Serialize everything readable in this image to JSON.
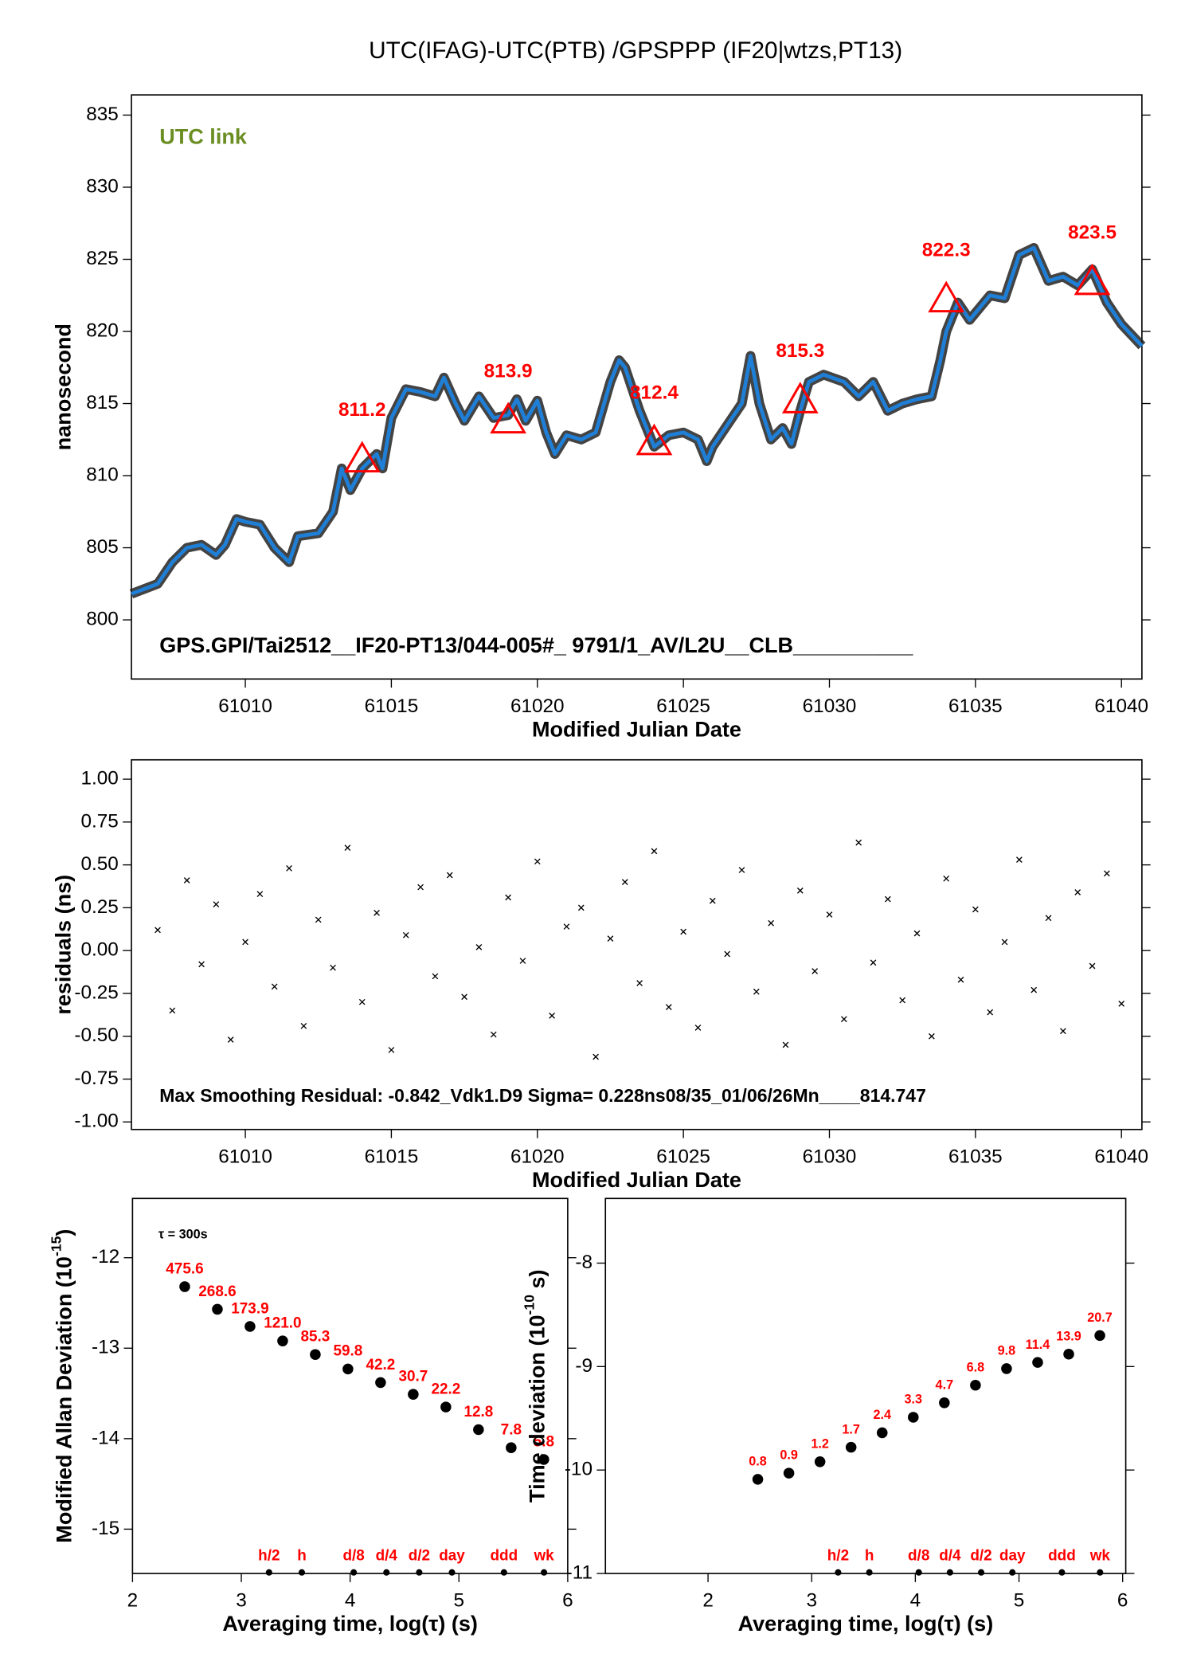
{
  "chart_data": [
    {
      "type": "line",
      "title": "UTC(IFAG)-UTC(PTB)  /GPSPPP  (IF20|wtzs,PT13)",
      "annotation": "UTC link",
      "footnote": "GPS.GPI/Tai2512__IF20-PT13/044-005#_  9791/1_AV/L2U__CLB__________",
      "xlabel": "Modified Julian Date",
      "ylabel": "nanosecond",
      "color": "#1f7fd6",
      "xlim": [
        61006.1,
        61040.7
      ],
      "ylim": [
        795.9,
        836.4
      ],
      "xticks": [
        61010,
        61015,
        61020,
        61025,
        61030,
        61035,
        61040
      ],
      "yticks": [
        800,
        805,
        810,
        815,
        820,
        825,
        830,
        835
      ],
      "x": [
        61006.1,
        61007,
        61007.5,
        61008,
        61008.5,
        61009,
        61009.3,
        61009.7,
        61010,
        61010.5,
        61011,
        61011.5,
        61011.8,
        61012.5,
        61013,
        61013.3,
        61013.6,
        61014,
        61014.5,
        61014.7,
        61015,
        61015.5,
        61016,
        61016.5,
        61016.8,
        61017.2,
        61017.5,
        61018,
        61018.5,
        61019,
        61019.3,
        61019.6,
        61020,
        61020.3,
        61020.6,
        61021,
        61021.5,
        61022,
        61022.5,
        61022.8,
        61023,
        61023.5,
        61024,
        61024.5,
        61025,
        61025.5,
        61025.8,
        61026,
        61026.5,
        61027,
        61027.3,
        61027.6,
        61028,
        61028.4,
        61028.7,
        61029,
        61029.3,
        61029.8,
        61030.5,
        61031,
        61031.5,
        61032,
        61032.5,
        61033,
        61033.5,
        61033.8,
        61034,
        61034.4,
        61034.8,
        61035.5,
        61036,
        61036.5,
        61037,
        61037.5,
        61038,
        61038.5,
        61039,
        61039.5,
        61040,
        61040.7
      ],
      "values": [
        801.8,
        802.5,
        804,
        805,
        805.2,
        804.5,
        805.2,
        807,
        806.8,
        806.6,
        805,
        804,
        805.8,
        806,
        807.5,
        810.5,
        809,
        810.5,
        811.5,
        810.5,
        814,
        816,
        815.8,
        815.5,
        816.8,
        815,
        813.8,
        815.5,
        814,
        814.2,
        815.3,
        813.8,
        815.2,
        813,
        811.5,
        812.8,
        812.5,
        813,
        816.5,
        818,
        817.5,
        814.5,
        812,
        812.8,
        813,
        812.5,
        811,
        812,
        813.5,
        815,
        818.3,
        815,
        812.5,
        813.3,
        812.2,
        814.5,
        816.5,
        817,
        816.5,
        815.5,
        816.5,
        814.5,
        815,
        815.3,
        815.5,
        818,
        820,
        822,
        820.8,
        822.5,
        822.3,
        825.3,
        825.8,
        823.5,
        823.8,
        823.2,
        824.3,
        822,
        820.5,
        819
      ],
      "markers": {
        "color": "#ff0000",
        "x": [
          61014,
          61019,
          61024,
          61029,
          61034,
          61039
        ],
        "values": [
          811.2,
          813.9,
          812.4,
          815.3,
          822.3,
          823.5
        ]
      }
    },
    {
      "type": "scatter",
      "footnote": "Max Smoothing Residual: -0.842_Vdk1.D9  Sigma= 0.228ns08/35_01/06/26Mn____814.747",
      "xlabel": "Modified Julian Date",
      "ylabel": "residuals (ns)",
      "color": "#000000",
      "xlim": [
        61006.1,
        61040.7
      ],
      "ylim": [
        -1.044,
        1.113
      ],
      "xticks": [
        61010,
        61015,
        61020,
        61025,
        61030,
        61035,
        61040
      ],
      "yticks": [
        {
          "value": 1,
          "label": "1.00"
        },
        0.75,
        {
          "value": 0.5,
          "label": "0.50"
        },
        0.25,
        {
          "value": 0,
          "label": "0.00"
        },
        -0.25,
        {
          "value": -0.5,
          "label": "-0.50"
        },
        -0.75,
        {
          "value": -1,
          "label": "-1.00"
        }
      ],
      "x": [
        61007,
        61007.5,
        61008,
        61008.5,
        61009,
        61009.5,
        61010,
        61010.5,
        61011,
        61011.5,
        61012,
        61012.5,
        61013,
        61013.5,
        61014,
        61014.5,
        61015,
        61015.5,
        61016,
        61016.5,
        61017,
        61017.5,
        61018,
        61018.5,
        61019,
        61019.5,
        61020,
        61020.5,
        61021,
        61021.5,
        61022,
        61022.5,
        61023,
        61023.5,
        61024,
        61024.5,
        61025,
        61025.5,
        61026,
        61026.5,
        61027,
        61027.5,
        61028,
        61028.5,
        61029,
        61029.5,
        61030,
        61030.5,
        61031,
        61031.5,
        61032,
        61032.5,
        61033,
        61033.5,
        61034,
        61034.5,
        61035,
        61035.5,
        61036,
        61036.5,
        61037,
        61037.5,
        61038,
        61038.5,
        61039,
        61039.5,
        61040
      ],
      "values": [
        0.12,
        -0.35,
        0.41,
        -0.08,
        0.27,
        -0.52,
        0.05,
        0.33,
        -0.21,
        0.48,
        -0.44,
        0.18,
        -0.1,
        0.6,
        -0.3,
        0.22,
        -0.58,
        0.09,
        0.37,
        -0.15,
        0.44,
        -0.27,
        0.02,
        -0.49,
        0.31,
        -0.06,
        0.52,
        -0.38,
        0.14,
        0.25,
        -0.62,
        0.07,
        0.4,
        -0.19,
        0.58,
        -0.33,
        0.11,
        -0.45,
        0.29,
        -0.02,
        0.47,
        -0.24,
        0.16,
        -0.55,
        0.35,
        -0.12,
        0.21,
        -0.4,
        0.63,
        -0.07,
        0.3,
        -0.29,
        0.1,
        -0.5,
        0.42,
        -0.17,
        0.24,
        -0.36,
        0.05,
        0.53,
        -0.23,
        0.19,
        -0.47,
        0.34,
        -0.09,
        0.45,
        -0.31
      ]
    },
    {
      "type": "scatter",
      "note": "τ = 300s",
      "xlabel": "Averaging time, log(τ) (s)",
      "ylabel": "Modified Allan Deviation (10",
      "ylabel_sup": "-15",
      "ylabel_end": ")",
      "color": "#000000",
      "label_color": "#ff0000",
      "xlim": [
        2,
        6
      ],
      "ylim": [
        -15.49,
        -11.345
      ],
      "xticks": [
        2,
        3,
        4,
        5,
        6
      ],
      "yticks": [
        -12,
        -13,
        -14,
        -15
      ],
      "x": [
        2.48,
        2.78,
        3.08,
        3.38,
        3.68,
        3.98,
        4.28,
        4.58,
        4.88,
        5.18,
        5.48,
        5.78
      ],
      "values": [
        -12.32,
        -12.57,
        -12.76,
        -12.92,
        -13.07,
        -13.23,
        -13.38,
        -13.51,
        -13.65,
        -13.9,
        -14.1,
        -14.23
      ],
      "point_labels": [
        "475.6",
        "268.6",
        "173.9",
        "121.0",
        "85.3",
        "59.8",
        "42.2",
        "30.7",
        "22.2",
        "12.8",
        "7.8",
        "5.8"
      ],
      "intervals": {
        "labels": [
          "h/2",
          "h",
          "d/8",
          "d/4",
          "d/2",
          "day",
          "ddd",
          "wk"
        ],
        "x": [
          3.255,
          3.556,
          4.033,
          4.334,
          4.635,
          4.936,
          5.414,
          5.782
        ]
      }
    },
    {
      "type": "scatter",
      "xlabel": "Averaging time, log(τ) (s)",
      "ylabel": "Time deviation (10",
      "ylabel_sup": "-10",
      "ylabel_end": " s)",
      "color": "#000000",
      "label_color": "#ff0000",
      "xlim": [
        1.01,
        6.03
      ],
      "ylim": [
        -11,
        -7.375
      ],
      "xticks": [
        2,
        3,
        4,
        5,
        6
      ],
      "yticks": [
        -8,
        -9,
        -10,
        -11
      ],
      "x": [
        2.48,
        2.78,
        3.08,
        3.38,
        3.68,
        3.98,
        4.28,
        4.58,
        4.88,
        5.18,
        5.48,
        5.78
      ],
      "values": [
        -10.09,
        -10.03,
        -9.92,
        -9.78,
        -9.64,
        -9.49,
        -9.35,
        -9.18,
        -9.02,
        -8.96,
        -8.88,
        -8.7
      ],
      "point_labels": [
        "0.8",
        "0.9",
        "1.2",
        "1.7",
        "2.4",
        "3.3",
        "4.7",
        "6.8",
        "9.8",
        "11.4",
        "13.9",
        "20.7"
      ],
      "intervals": {
        "labels": [
          "h/2",
          "h",
          "d/8",
          "d/4",
          "d/2",
          "day",
          "ddd",
          "wk"
        ],
        "x": [
          3.255,
          3.556,
          4.033,
          4.334,
          4.635,
          4.936,
          5.414,
          5.782
        ]
      }
    }
  ]
}
